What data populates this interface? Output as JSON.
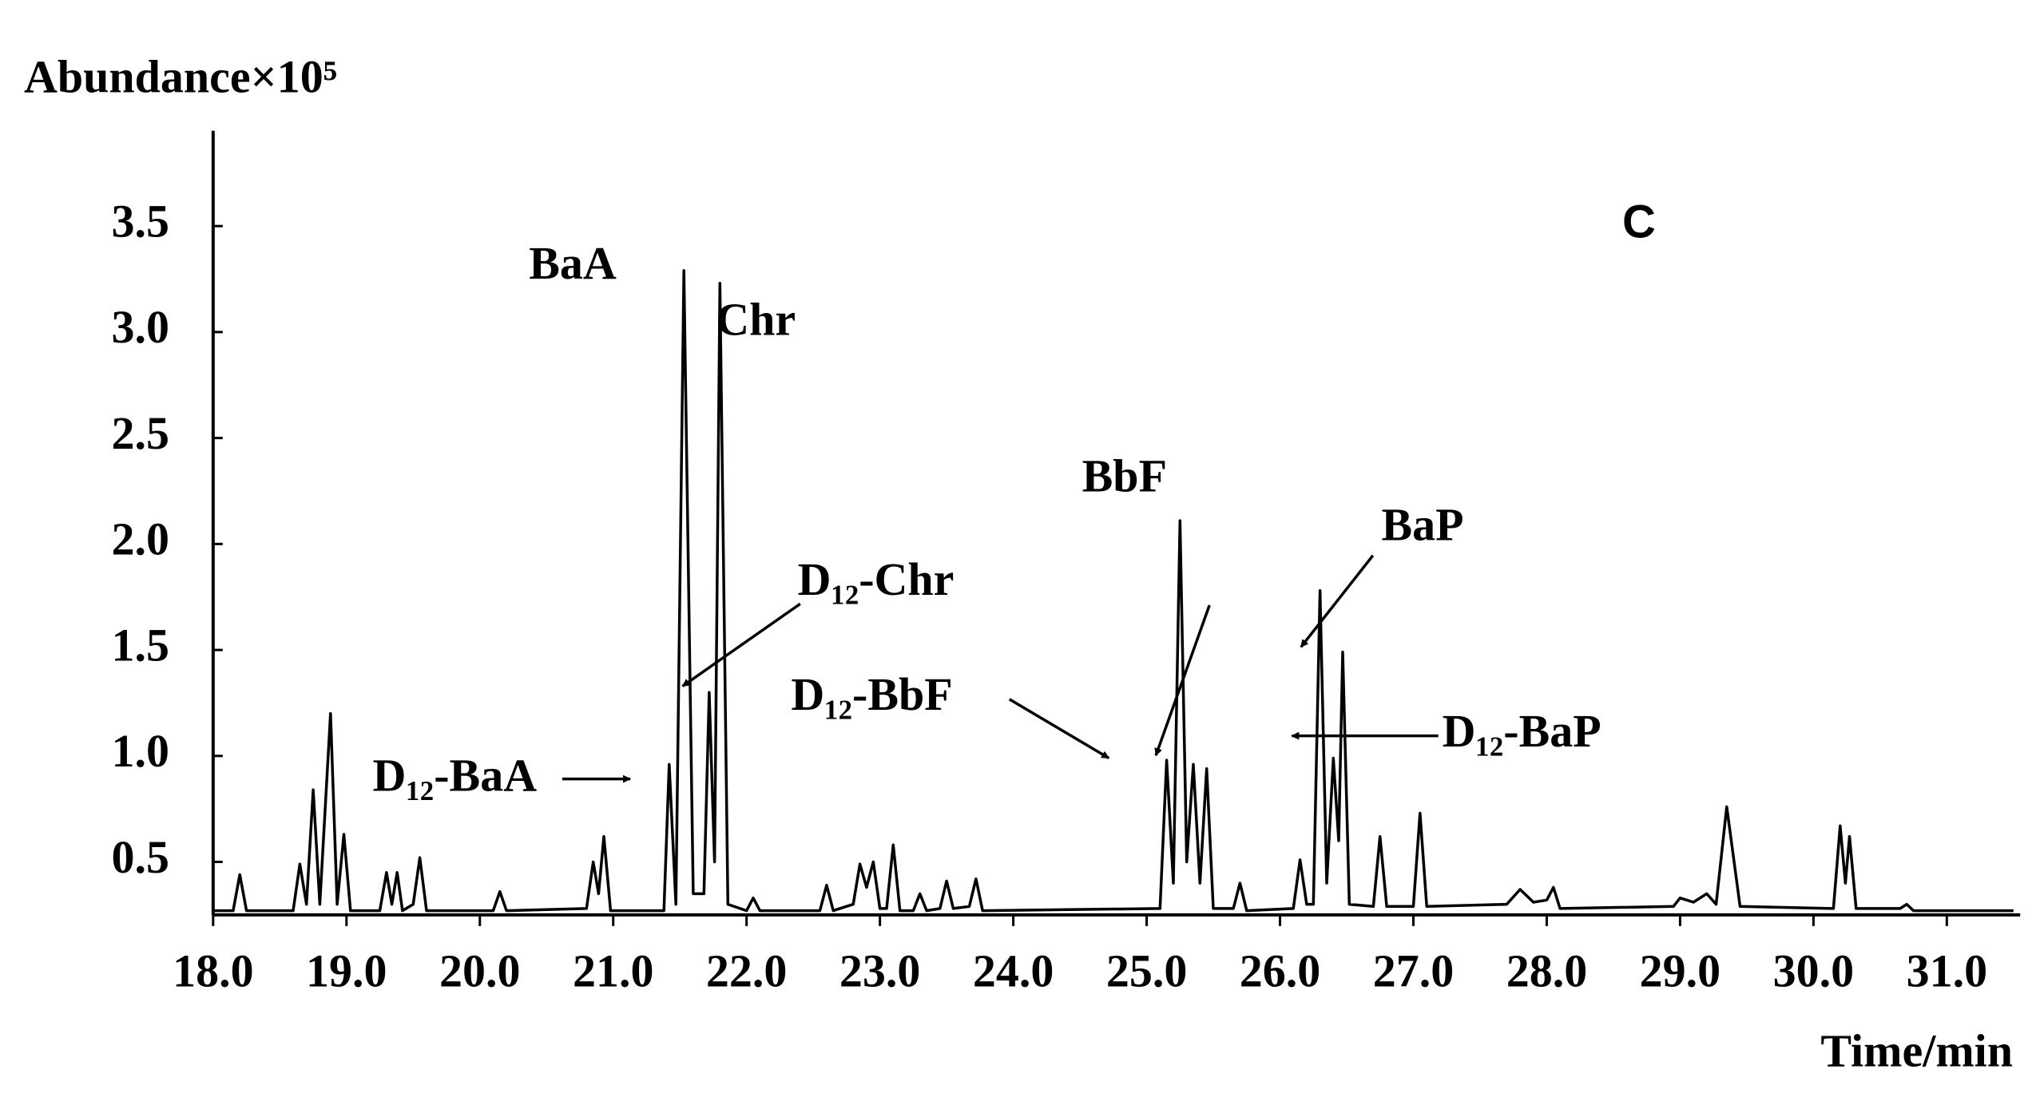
{
  "chart_data": {
    "type": "line",
    "y_label": "Abundance×10⁵",
    "x_label": "Time/min",
    "panel_label": "C",
    "annotations": [
      "BaA",
      "Chr",
      "D₁₂-Chr",
      "D₁₂-BbF",
      "D₁₂-BaA",
      "BbF",
      "BaP",
      "D₁₂-BaP"
    ],
    "color": "#000000",
    "x": [
      18.0,
      18.15,
      18.2,
      18.25,
      18.6,
      18.65,
      18.7,
      18.75,
      18.8,
      18.88,
      18.93,
      18.98,
      19.03,
      19.25,
      19.3,
      19.34,
      19.38,
      19.42,
      19.5,
      19.55,
      19.6,
      20.1,
      20.15,
      20.2,
      20.8,
      20.85,
      20.89,
      20.93,
      20.98,
      21.38,
      21.42,
      21.47,
      21.53,
      21.6,
      21.68,
      21.72,
      21.76,
      21.8,
      21.86,
      22.0,
      22.05,
      22.1,
      22.55,
      22.6,
      22.65,
      22.8,
      22.85,
      22.9,
      22.95,
      23.0,
      23.05,
      23.1,
      23.15,
      23.25,
      23.3,
      23.35,
      23.45,
      23.5,
      23.55,
      23.67,
      23.72,
      23.77,
      25.1,
      25.15,
      25.2,
      25.25,
      25.3,
      25.35,
      25.4,
      25.45,
      25.5,
      25.65,
      25.7,
      25.75,
      26.1,
      26.15,
      26.2,
      26.25,
      26.3,
      26.35,
      26.4,
      26.44,
      26.47,
      26.52,
      26.7,
      26.75,
      26.8,
      27.0,
      27.05,
      27.1,
      27.7,
      27.8,
      27.9,
      28.0,
      28.05,
      28.1,
      28.95,
      29.0,
      29.1,
      29.2,
      29.27,
      29.35,
      29.45,
      30.15,
      30.2,
      30.24,
      30.27,
      30.32,
      30.65,
      30.7,
      30.75,
      31.5
    ],
    "values": [
      0.27,
      0.27,
      0.44,
      0.27,
      0.27,
      0.49,
      0.3,
      0.84,
      0.3,
      1.2,
      0.3,
      0.63,
      0.27,
      0.27,
      0.45,
      0.3,
      0.45,
      0.27,
      0.3,
      0.52,
      0.27,
      0.27,
      0.36,
      0.27,
      0.28,
      0.5,
      0.35,
      0.62,
      0.27,
      0.27,
      0.96,
      0.3,
      3.29,
      0.35,
      0.35,
      1.3,
      0.5,
      3.23,
      0.3,
      0.27,
      0.33,
      0.27,
      0.27,
      0.39,
      0.27,
      0.3,
      0.49,
      0.38,
      0.5,
      0.28,
      0.28,
      0.58,
      0.27,
      0.27,
      0.35,
      0.27,
      0.28,
      0.41,
      0.28,
      0.29,
      0.42,
      0.27,
      0.28,
      0.98,
      0.4,
      2.11,
      0.5,
      0.96,
      0.4,
      0.94,
      0.28,
      0.28,
      0.4,
      0.27,
      0.28,
      0.51,
      0.3,
      0.3,
      1.78,
      0.4,
      0.99,
      0.6,
      1.49,
      0.3,
      0.29,
      0.62,
      0.29,
      0.29,
      0.73,
      0.29,
      0.3,
      0.37,
      0.31,
      0.32,
      0.38,
      0.28,
      0.29,
      0.33,
      0.31,
      0.35,
      0.3,
      0.76,
      0.29,
      0.28,
      0.67,
      0.4,
      0.62,
      0.28,
      0.28,
      0.3,
      0.27,
      0.27
    ],
    "xlim": [
      18.0,
      31.55
    ],
    "ylim": [
      0.25,
      3.95
    ],
    "xticks": [
      {
        "value": 18,
        "label": "18.0"
      },
      {
        "value": 19,
        "label": "19.0"
      },
      {
        "value": 20,
        "label": "20.0"
      },
      {
        "value": 21,
        "label": "21.0"
      },
      {
        "value": 22,
        "label": "22.0"
      },
      {
        "value": 23,
        "label": "23.0"
      },
      {
        "value": 24,
        "label": "24.0"
      },
      {
        "value": 25,
        "label": "25.0"
      },
      {
        "value": 26,
        "label": "26.0"
      },
      {
        "value": 27,
        "label": "27.0"
      },
      {
        "value": 28,
        "label": "28.0"
      },
      {
        "value": 29,
        "label": "29.0"
      },
      {
        "value": 30,
        "label": "30.0"
      },
      {
        "value": 31,
        "label": "31.0"
      }
    ],
    "yticks": [
      0.5,
      {
        "value": 1,
        "label": "1.0"
      },
      1.5,
      {
        "value": 2,
        "label": "2.0"
      },
      2.5,
      {
        "value": 3,
        "label": "3.0"
      },
      3.5
    ],
    "grid": false
  }
}
